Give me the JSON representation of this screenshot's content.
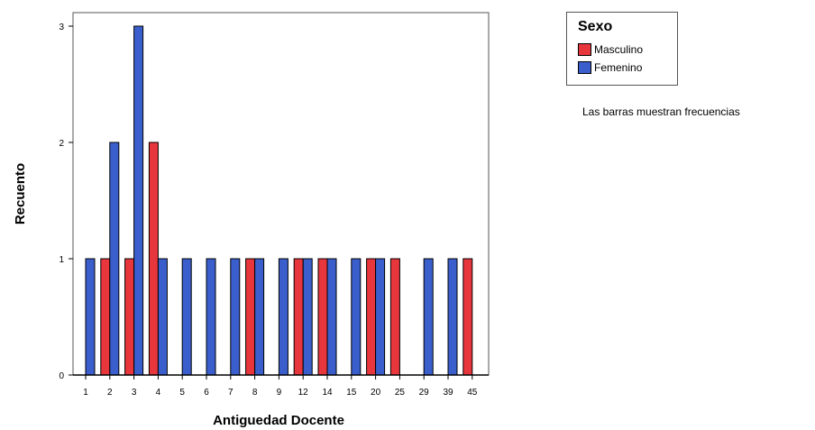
{
  "chart_data": {
    "type": "bar",
    "xlabel": "Antiguedad Docente",
    "ylabel": "Recuento",
    "categories": [
      "1",
      "2",
      "3",
      "4",
      "5",
      "6",
      "7",
      "8",
      "9",
      "12",
      "14",
      "15",
      "20",
      "25",
      "29",
      "39",
      "45"
    ],
    "ylim": [
      0,
      3
    ],
    "yticks": [
      0,
      1,
      2,
      3
    ],
    "grid": false,
    "legend_position": "top-right",
    "legend_title": "Sexo",
    "series": [
      {
        "name": "Masculino",
        "color": "#e8363d",
        "values": [
          0,
          1,
          1,
          2,
          0,
          0,
          0,
          1,
          0,
          1,
          1,
          0,
          1,
          1,
          0,
          0,
          1
        ]
      },
      {
        "name": "Femenino",
        "color": "#3a5fcd",
        "values": [
          1,
          2,
          3,
          1,
          1,
          1,
          1,
          1,
          1,
          1,
          1,
          1,
          1,
          0,
          1,
          1,
          0
        ]
      }
    ],
    "note": "Las barras muestran frecuencias"
  }
}
